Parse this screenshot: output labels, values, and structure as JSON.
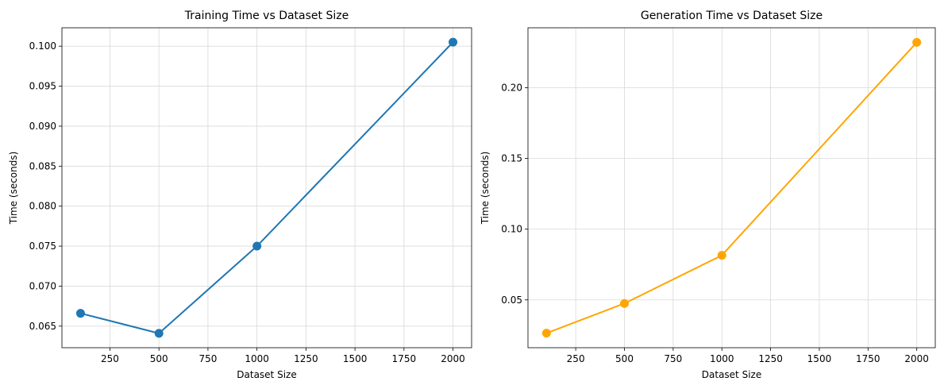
{
  "chart_data": [
    {
      "type": "line",
      "title": "Training Time vs Dataset Size",
      "xlabel": "Dataset Size",
      "ylabel": "Time (seconds)",
      "x": [
        100,
        500,
        1000,
        2000
      ],
      "series": [
        {
          "values": [
            0.0666,
            0.0641,
            0.075,
            0.1005
          ],
          "color": "#1f77b4",
          "marker": "circle"
        }
      ],
      "xlim": [
        5,
        2095
      ],
      "ylim": [
        0.0623,
        0.1023
      ],
      "xticks": [
        250,
        500,
        750,
        1000,
        1250,
        1500,
        1750,
        2000
      ],
      "xtick_labels": [
        "250",
        "500",
        "750",
        "1000",
        "1250",
        "1500",
        "1750",
        "2000"
      ],
      "yticks": [
        0.065,
        0.07,
        0.075,
        0.08,
        0.085,
        0.09,
        0.095,
        0.1
      ],
      "ytick_labels": [
        "0.065",
        "0.070",
        "0.075",
        "0.080",
        "0.085",
        "0.090",
        "0.095",
        "0.100"
      ],
      "grid": true
    },
    {
      "type": "line",
      "title": "Generation Time vs Dataset Size",
      "xlabel": "Dataset Size",
      "ylabel": "Time (seconds)",
      "x": [
        100,
        500,
        1000,
        2000
      ],
      "series": [
        {
          "values": [
            0.0265,
            0.0475,
            0.0815,
            0.232
          ],
          "color": "#ffa500",
          "marker": "circle"
        }
      ],
      "xlim": [
        5,
        2095
      ],
      "ylim": [
        0.0162,
        0.2423
      ],
      "xticks": [
        250,
        500,
        750,
        1000,
        1250,
        1500,
        1750,
        2000
      ],
      "xtick_labels": [
        "250",
        "500",
        "750",
        "1000",
        "1250",
        "1500",
        "1750",
        "2000"
      ],
      "yticks": [
        0.05,
        0.1,
        0.15,
        0.2
      ],
      "ytick_labels": [
        "0.05",
        "0.10",
        "0.15",
        "0.20"
      ],
      "grid": true
    }
  ]
}
